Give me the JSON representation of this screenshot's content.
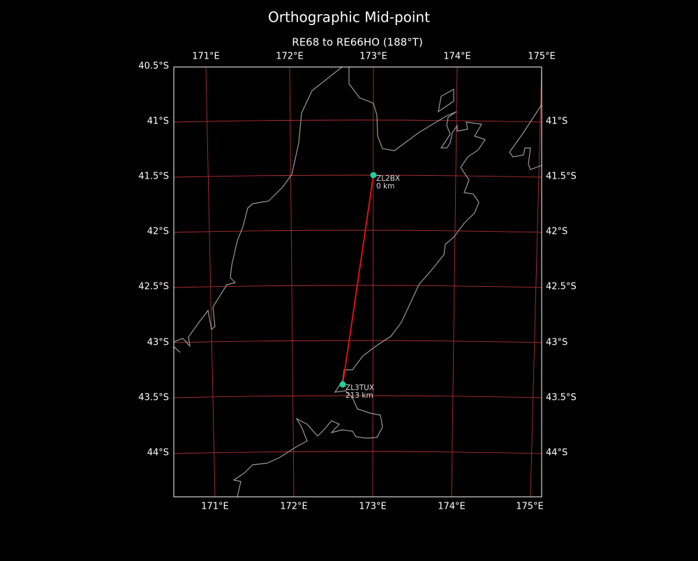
{
  "header": {
    "title": "Orthographic Mid-point",
    "subtitle": "RE68 to RE66HO (188°T)"
  },
  "axes": {
    "top": [
      "171°E",
      "172°E",
      "173°E",
      "174°E",
      "175°E"
    ],
    "bottom": [
      "171°E",
      "172°E",
      "173°E",
      "174°E",
      "175°E"
    ],
    "left": [
      "40.5°S",
      "41°S",
      "41.5°S",
      "42°S",
      "42.5°S",
      "43°S",
      "43.5°S",
      "44°S"
    ],
    "right": [
      "41°S",
      "41.5°S",
      "42°S",
      "42.5°S",
      "43°S",
      "43.5°S",
      "44°S"
    ]
  },
  "stations": [
    {
      "name": "ZL2BX",
      "distance": "0 km"
    },
    {
      "name": "ZL3TUX",
      "distance": "213 km"
    }
  ]
}
